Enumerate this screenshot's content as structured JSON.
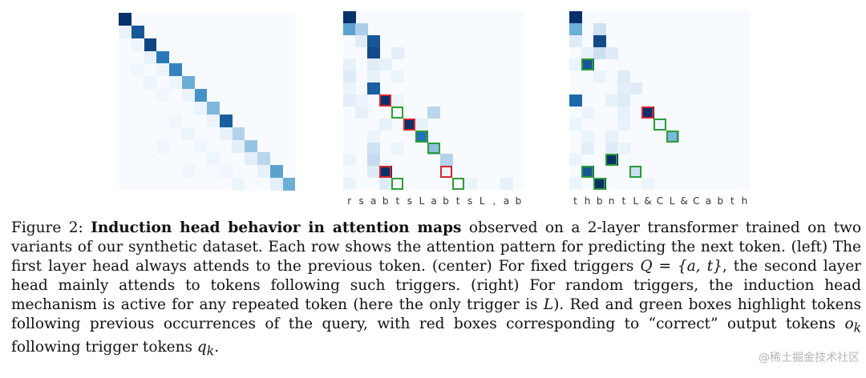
{
  "figure": {
    "panels": [
      {
        "id": "left",
        "grid": 14,
        "cells": [
          [
            0,
            0,
            1.0
          ],
          [
            1,
            1,
            0.85
          ],
          [
            2,
            2,
            0.92
          ],
          [
            3,
            3,
            0.72
          ],
          [
            4,
            4,
            0.68
          ],
          [
            5,
            5,
            0.5
          ],
          [
            6,
            6,
            0.62
          ],
          [
            7,
            7,
            0.45
          ],
          [
            8,
            8,
            0.82
          ],
          [
            9,
            9,
            0.3
          ],
          [
            10,
            10,
            0.38
          ],
          [
            11,
            11,
            0.28
          ],
          [
            12,
            12,
            0.55
          ],
          [
            13,
            13,
            0.5
          ],
          [
            1,
            0,
            0.06
          ],
          [
            2,
            1,
            0.05
          ],
          [
            3,
            2,
            0.07
          ],
          [
            4,
            3,
            0.05
          ],
          [
            5,
            4,
            0.05
          ],
          [
            6,
            5,
            0.06
          ],
          [
            7,
            6,
            0.06
          ],
          [
            8,
            7,
            0.05
          ],
          [
            9,
            8,
            0.08
          ],
          [
            10,
            9,
            0.09
          ],
          [
            11,
            10,
            0.1
          ],
          [
            12,
            11,
            0.08
          ],
          [
            13,
            12,
            0.09
          ],
          [
            4,
            1,
            0.04
          ],
          [
            5,
            2,
            0.05
          ],
          [
            6,
            3,
            0.04
          ],
          [
            8,
            4,
            0.04
          ],
          [
            9,
            5,
            0.05
          ],
          [
            10,
            6,
            0.04
          ],
          [
            11,
            7,
            0.05
          ],
          [
            12,
            8,
            0.04
          ],
          [
            13,
            9,
            0.05
          ],
          [
            10,
            3,
            0.04
          ],
          [
            12,
            5,
            0.04
          ]
        ],
        "boxes": []
      },
      {
        "id": "center",
        "grid": 15,
        "cells": [
          [
            0,
            0,
            1.0
          ],
          [
            1,
            0,
            0.55
          ],
          [
            1,
            1,
            0.32
          ],
          [
            2,
            1,
            0.12
          ],
          [
            2,
            2,
            0.85
          ],
          [
            3,
            2,
            0.9
          ],
          [
            3,
            4,
            0.1
          ],
          [
            4,
            0,
            0.08
          ],
          [
            4,
            2,
            0.12
          ],
          [
            4,
            3,
            0.08
          ],
          [
            5,
            0,
            0.12
          ],
          [
            5,
            2,
            0.08
          ],
          [
            5,
            4,
            0.06
          ],
          [
            6,
            2,
            0.82
          ],
          [
            6,
            0,
            0.06
          ],
          [
            7,
            0,
            0.1
          ],
          [
            7,
            1,
            0.06
          ],
          [
            7,
            3,
            1.0
          ],
          [
            7,
            4,
            0.06
          ],
          [
            8,
            1,
            0.08
          ],
          [
            8,
            7,
            0.28
          ],
          [
            9,
            3,
            0.08
          ],
          [
            9,
            5,
            1.0
          ],
          [
            9,
            6,
            0.08
          ],
          [
            10,
            6,
            0.75
          ],
          [
            10,
            2,
            0.06
          ],
          [
            11,
            2,
            0.2
          ],
          [
            11,
            7,
            0.4
          ],
          [
            11,
            4,
            0.06
          ],
          [
            12,
            2,
            0.25
          ],
          [
            12,
            0,
            0.05
          ],
          [
            12,
            8,
            0.3
          ],
          [
            13,
            2,
            0.12
          ],
          [
            13,
            3,
            1.0
          ],
          [
            13,
            8,
            0.06
          ],
          [
            14,
            3,
            0.12
          ],
          [
            14,
            0,
            0.06
          ],
          [
            14,
            13,
            0.08
          ],
          [
            14,
            10,
            0.06
          ]
        ],
        "boxes": [
          [
            7,
            3,
            "red"
          ],
          [
            8,
            4,
            "green"
          ],
          [
            9,
            5,
            "red"
          ],
          [
            10,
            6,
            "green"
          ],
          [
            11,
            7,
            "green"
          ],
          [
            13,
            3,
            "red"
          ],
          [
            14,
            4,
            "green"
          ],
          [
            13,
            8,
            "red"
          ],
          [
            14,
            9,
            "green"
          ]
        ]
      },
      {
        "id": "right",
        "grid": 15,
        "cells": [
          [
            0,
            0,
            1.0
          ],
          [
            1,
            0,
            0.5
          ],
          [
            1,
            2,
            0.2
          ],
          [
            2,
            0,
            0.12
          ],
          [
            2,
            2,
            0.9
          ],
          [
            3,
            1,
            0.08
          ],
          [
            3,
            2,
            0.22
          ],
          [
            3,
            3,
            0.12
          ],
          [
            4,
            1,
            0.85
          ],
          [
            4,
            0,
            0.06
          ],
          [
            5,
            4,
            0.12
          ],
          [
            5,
            2,
            0.06
          ],
          [
            6,
            4,
            0.1
          ],
          [
            6,
            5,
            0.12
          ],
          [
            7,
            0,
            0.78
          ],
          [
            7,
            3,
            0.08
          ],
          [
            7,
            4,
            0.12
          ],
          [
            8,
            6,
            1.0
          ],
          [
            8,
            1,
            0.06
          ],
          [
            8,
            4,
            0.08
          ],
          [
            9,
            0,
            0.06
          ],
          [
            9,
            7,
            0.05
          ],
          [
            9,
            4,
            0.07
          ],
          [
            10,
            3,
            0.08
          ],
          [
            10,
            8,
            0.45
          ],
          [
            10,
            1,
            0.06
          ],
          [
            11,
            1,
            0.1
          ],
          [
            11,
            3,
            0.12
          ],
          [
            11,
            4,
            0.06
          ],
          [
            12,
            3,
            1.0
          ],
          [
            12,
            0,
            0.06
          ],
          [
            13,
            1,
            0.85
          ],
          [
            13,
            5,
            0.22
          ],
          [
            14,
            2,
            1.0
          ],
          [
            14,
            0,
            0.06
          ],
          [
            14,
            6,
            0.05
          ]
        ],
        "boxes": [
          [
            4,
            1,
            "green"
          ],
          [
            8,
            6,
            "red"
          ],
          [
            9,
            7,
            "green"
          ],
          [
            10,
            8,
            "green"
          ],
          [
            12,
            3,
            "green"
          ],
          [
            13,
            1,
            "green"
          ],
          [
            14,
            2,
            "green"
          ],
          [
            13,
            5,
            "green"
          ]
        ]
      }
    ],
    "tokens_center": [
      "r",
      "s",
      "a",
      "b",
      "t",
      "s",
      "L",
      "a",
      "b",
      "t",
      "s",
      "L",
      ",",
      "a",
      "b"
    ],
    "tokens_right": [
      "t",
      "h",
      "b",
      "n",
      "t",
      "L",
      "&",
      "C",
      "L",
      "&",
      "C",
      "a",
      "b",
      "t",
      "h"
    ]
  },
  "caption": {
    "label": "Figure 2:",
    "bold": "Induction head behavior in attention maps",
    "part1": " observed on a 2-layer transformer trained on two variants of our synthetic dataset. Each row shows the attention pattern for predicting the next token. (left) The first layer head always attends to the previous token. (center) For fixed triggers ",
    "math1": "Q = {a, t}",
    "part2": ", the second layer head mainly attends to tokens following such triggers. (right) For random triggers, the induction head mechanism is active for any repeated token (here the only trigger is ",
    "math2": "L",
    "part3": "). Red and green boxes highlight tokens following previous occurrences of the query, with red boxes corresponding to “correct” output tokens ",
    "math3": "o",
    "math3_sub": "k",
    "part4": " following trigger tokens ",
    "math4": "q",
    "math4_sub": "k",
    "part5": "."
  },
  "watermark": "@稀土掘金技术社区",
  "colors": {
    "heat_low": "#f7fbff",
    "heat_high": "#08306b",
    "box_red": "#d6262b",
    "box_green": "#2e9b37"
  }
}
